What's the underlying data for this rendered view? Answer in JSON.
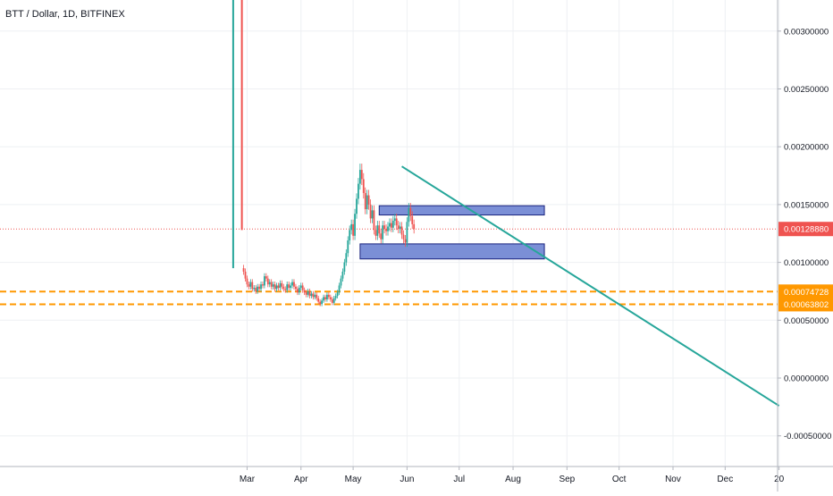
{
  "header": {
    "title": "BTT / Dollar, 1D, BITFINEX"
  },
  "chart_data": {
    "type": "candlestick",
    "title": "BTT / Dollar, 1D, BITFINEX",
    "y_ticks": [
      {
        "value": 0.003,
        "label": "0.00300000"
      },
      {
        "value": 0.0025,
        "label": "0.00250000"
      },
      {
        "value": 0.002,
        "label": "0.00200000"
      },
      {
        "value": 0.0015,
        "label": "0.00150000"
      },
      {
        "value": 0.001,
        "label": "0.00100000"
      },
      {
        "value": 0.0005,
        "label": "0.00050000"
      },
      {
        "value": 0.0,
        "label": "0.00000000"
      },
      {
        "value": -0.0005,
        "label": "-0.00050000"
      }
    ],
    "x_ticks": [
      {
        "label": "Mar",
        "day": 28
      },
      {
        "label": "Apr",
        "day": 59
      },
      {
        "label": "May",
        "day": 89
      },
      {
        "label": "Jun",
        "day": 120
      },
      {
        "label": "Jul",
        "day": 150
      },
      {
        "label": "Aug",
        "day": 181
      },
      {
        "label": "Sep",
        "day": 212
      },
      {
        "label": "Oct",
        "day": 242
      },
      {
        "label": "Nov",
        "day": 273
      },
      {
        "label": "Dec",
        "day": 303
      },
      {
        "label": "20",
        "day": 334
      }
    ],
    "ylim": [
      -0.00078,
      0.0034
    ],
    "grid": true,
    "current_price": {
      "value": 0.0012888,
      "label": "0.00128880",
      "color": "#ef5350"
    },
    "horizontal_levels": [
      {
        "value": 0.00074728,
        "label": "0.00074728",
        "color": "#ff9800"
      },
      {
        "value": 0.00063802,
        "label": "0.00063802",
        "color": "#ff9800"
      }
    ],
    "rectangles": [
      {
        "day_start": 104,
        "day_end": 199,
        "price_low": 0.00141,
        "price_high": 0.00149,
        "fill": "#7b8fd6",
        "stroke": "#1a237e"
      },
      {
        "day_start": 93,
        "day_end": 199,
        "price_low": 0.00103,
        "price_high": 0.00116,
        "fill": "#7b8fd6",
        "stroke": "#1a237e"
      }
    ],
    "trendline": {
      "day_start": 117,
      "price_start": 0.00183,
      "day_end": 334,
      "price_end": -0.00024,
      "color": "#26a69a"
    },
    "initial_spike": [
      {
        "day": 20,
        "open": 0.00095,
        "close": 0.0035,
        "high": 0.0035,
        "low": 0.00095
      },
      {
        "day": 25,
        "open": 0.0035,
        "close": 0.00128,
        "high": 0.0035,
        "low": 0.00128
      }
    ],
    "candle_colors": {
      "up": "#26a69a",
      "down": "#ef5350"
    },
    "series": [
      {
        "name": "BTT/USD",
        "closes": [
          0.00092,
          0.00086,
          0.00081,
          0.00079,
          0.00083,
          0.00077,
          0.00078,
          0.00075,
          0.00079,
          0.00077,
          0.00081,
          0.0008,
          0.00088,
          0.00086,
          0.00081,
          0.00083,
          0.00079,
          0.00081,
          0.00077,
          0.0008,
          0.00078,
          0.00082,
          0.00079,
          0.00077,
          0.00076,
          0.00081,
          0.00078,
          0.0008,
          0.00083,
          0.00079,
          0.00077,
          0.00074,
          0.00078,
          0.0008,
          0.00076,
          0.00074,
          0.00072,
          0.00075,
          0.00071,
          0.00073,
          0.0007,
          0.00072,
          0.00069,
          0.00066,
          0.00064,
          0.00067,
          0.0007,
          0.00068,
          0.00072,
          0.0007,
          0.00068,
          0.00065,
          0.00069,
          0.00071,
          0.00074,
          0.0008,
          0.00086,
          0.00092,
          0.001,
          0.00108,
          0.00119,
          0.00128,
          0.00133,
          0.00123,
          0.00142,
          0.00155,
          0.00168,
          0.0018,
          0.00172,
          0.0016,
          0.00146,
          0.00158,
          0.0015,
          0.00138,
          0.00145,
          0.00128,
          0.00123,
          0.00132,
          0.00125,
          0.0012,
          0.00132,
          0.00129,
          0.00127,
          0.00131,
          0.00134,
          0.0013,
          0.00136,
          0.00138,
          0.00132,
          0.00129,
          0.00131,
          0.00124,
          0.0012,
          0.00117,
          0.00135,
          0.00147,
          0.0014,
          0.00133,
          0.00128888
        ]
      }
    ]
  }
}
